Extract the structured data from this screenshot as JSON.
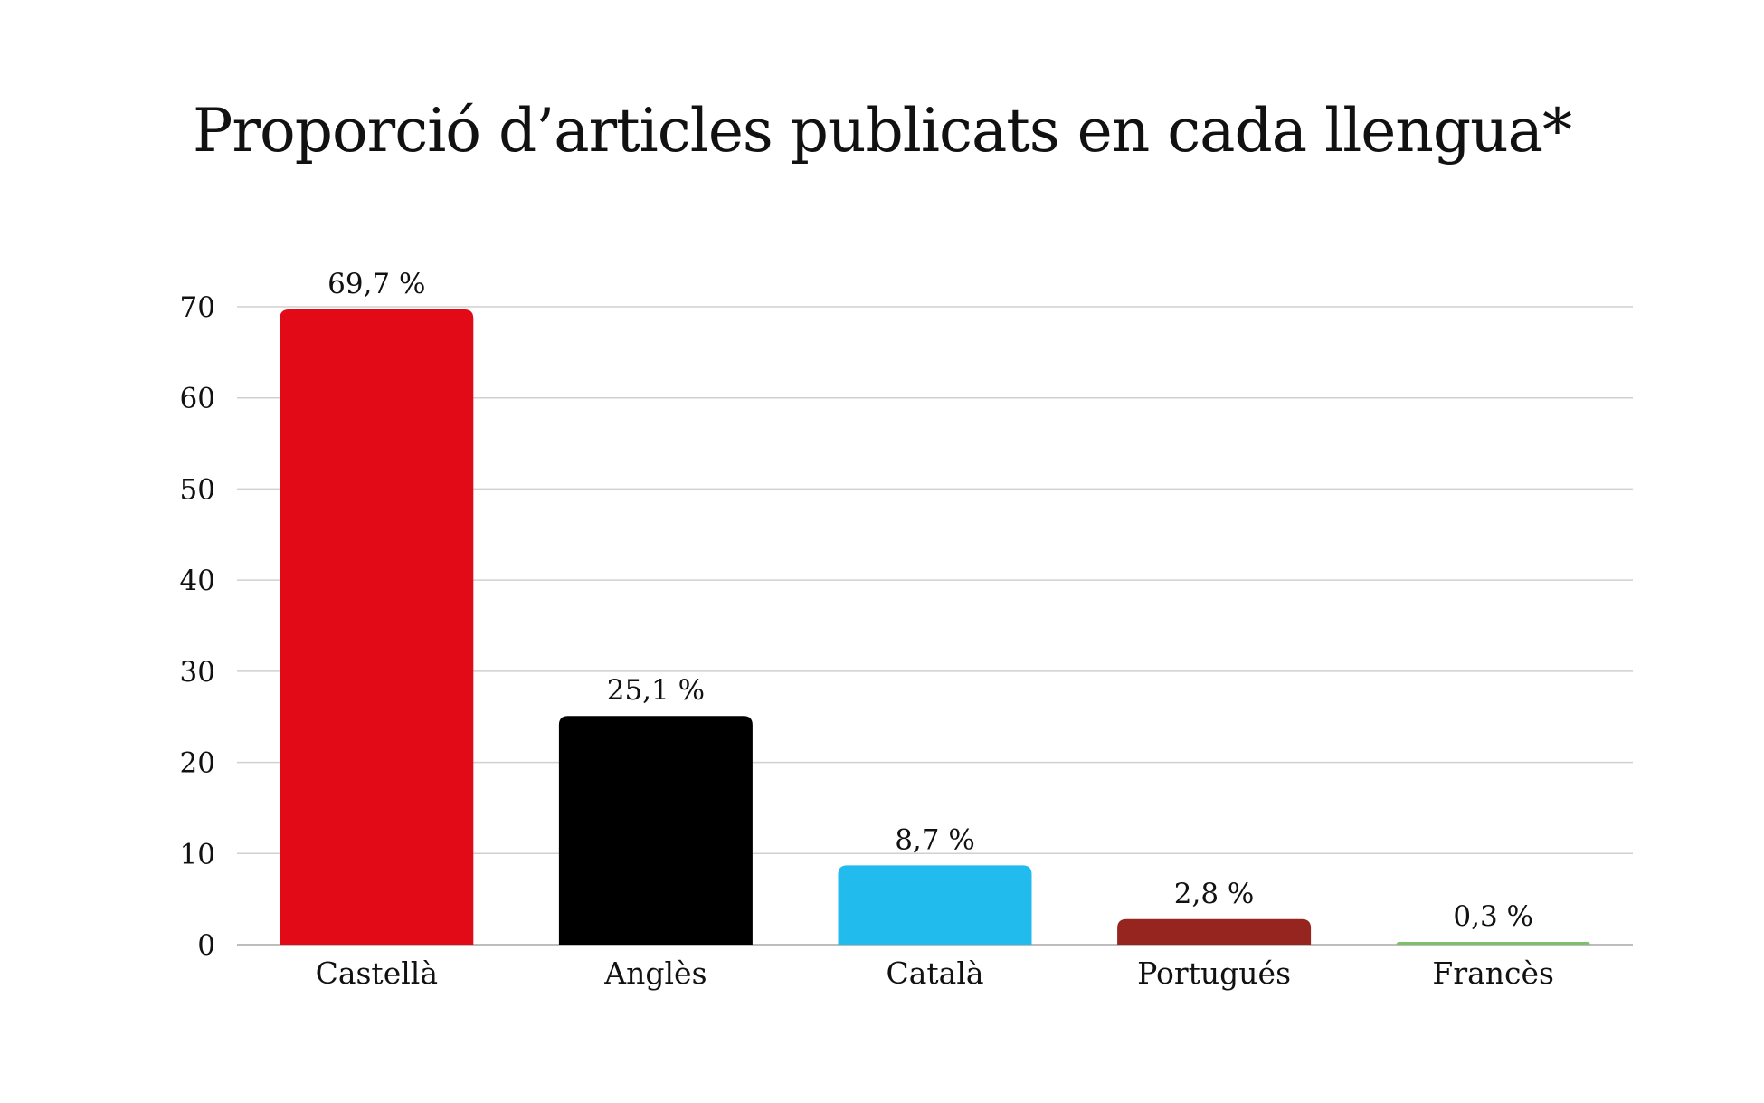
{
  "chart_data": {
    "type": "bar",
    "title": "Proporció d’articles publicats en cada llengua*",
    "xlabel": "",
    "ylabel": "",
    "categories": [
      "Castellà",
      "Anglès",
      "Català",
      "Portugués",
      "Francès"
    ],
    "values": [
      69.7,
      25.1,
      8.7,
      2.8,
      0.3
    ],
    "data_labels": [
      "69,7 %",
      "25,1 %",
      "8,7 %",
      "2,8 %",
      "0,3 %"
    ],
    "bar_colors": [
      "#e20a17",
      "#000000",
      "#22bbee",
      "#962520",
      "#7cc16a"
    ],
    "ylim": [
      0,
      70
    ],
    "yticks": [
      "0",
      "10",
      "20",
      "30",
      "40",
      "50",
      "60",
      "70"
    ],
    "grid": true,
    "legend": "none"
  }
}
